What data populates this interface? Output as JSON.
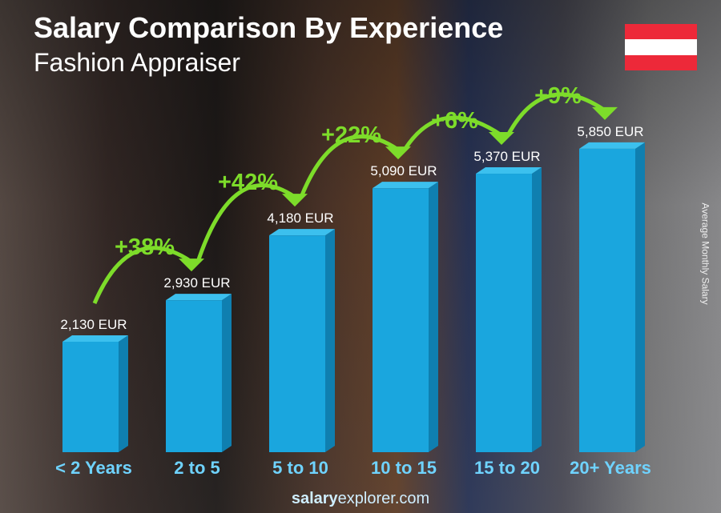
{
  "header": {
    "title": "Salary Comparison By Experience",
    "subtitle": "Fashion Appraiser"
  },
  "flag": {
    "country": "Austria",
    "colors": [
      "#ed2939",
      "#ffffff",
      "#ed2939"
    ]
  },
  "footer": {
    "brand_bold": "salary",
    "brand_rest": "explorer",
    "tld": ".com"
  },
  "chart_data": {
    "type": "bar",
    "title": "Salary Comparison By Experience",
    "subtitle": "Fashion Appraiser",
    "ylabel": "Average Monthly Salary",
    "categories": [
      "< 2 Years",
      "2 to 5",
      "5 to 10",
      "10 to 15",
      "15 to 20",
      "20+ Years"
    ],
    "values": [
      2130,
      2930,
      4180,
      5090,
      5370,
      5850
    ],
    "value_labels": [
      "2,130 EUR",
      "2,930 EUR",
      "4,180 EUR",
      "5,090 EUR",
      "5,370 EUR",
      "5,850 EUR"
    ],
    "increases": [
      "+38%",
      "+42%",
      "+22%",
      "+6%",
      "+9%"
    ],
    "unit": "EUR",
    "colors": {
      "bar": "#1aa6de",
      "bar_side": "#0f7fb0",
      "bar_top": "#3cc0ee",
      "increase": "#7ddc2a",
      "category": "#6fd3ff"
    },
    "grid": false
  }
}
